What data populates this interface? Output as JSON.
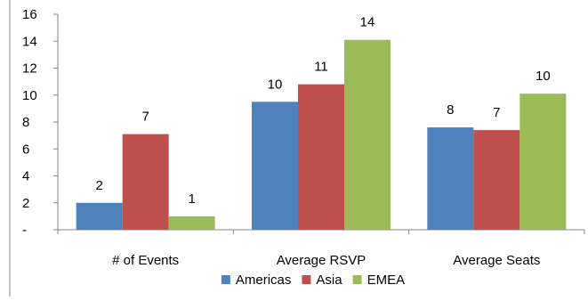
{
  "chart_data": {
    "type": "bar",
    "categories": [
      "# of Events",
      "Average RSVP",
      "Average Seats"
    ],
    "series": [
      {
        "name": "Americas",
        "color": "#4F81BD",
        "values": [
          2,
          9.5,
          7.6
        ],
        "labels": [
          "2",
          "10",
          "8"
        ]
      },
      {
        "name": "Asia",
        "color": "#C0504D",
        "values": [
          7.1,
          10.8,
          7.4
        ],
        "labels": [
          "7",
          "11",
          "7"
        ]
      },
      {
        "name": "EMEA",
        "color": "#9BBB59",
        "values": [
          1.0,
          14.1,
          10.1
        ],
        "labels": [
          "1",
          "14",
          "10"
        ]
      }
    ],
    "yticks": [
      0,
      2,
      4,
      6,
      8,
      10,
      12,
      14,
      16
    ],
    "ytick_labels": [
      "-",
      "2",
      "4",
      "6",
      "8",
      "10",
      "12",
      "14",
      "16"
    ],
    "ylim": [
      0,
      16
    ],
    "grid": false,
    "legend_position": "bottom"
  }
}
